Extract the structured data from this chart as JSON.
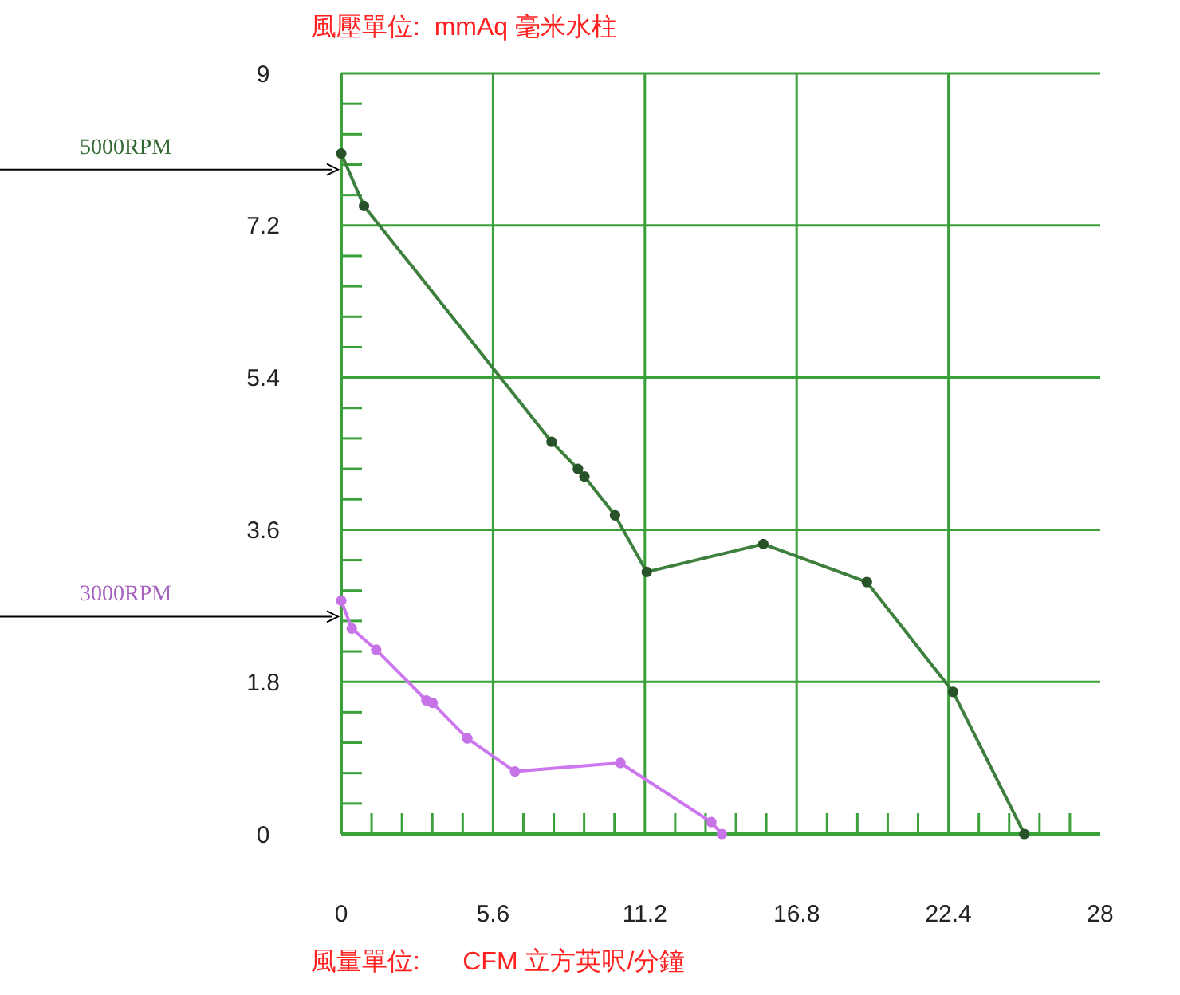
{
  "chart_data": {
    "type": "line",
    "ylabel": "風壓單位:  mmAq 毫米水柱",
    "xlabel": "風量單位:      CFM 立方英呎/分鐘",
    "xlim": [
      0,
      28
    ],
    "ylim": [
      0,
      9
    ],
    "xticks": [
      0,
      {
        "value": 1.12,
        "label": null
      },
      {
        "value": 2.24,
        "label": null
      },
      {
        "value": 3.36,
        "label": null
      },
      {
        "value": 4.48,
        "label": null
      },
      5.6,
      {
        "value": 6.72,
        "label": null
      },
      {
        "value": 7.84,
        "label": null
      },
      {
        "value": 8.96,
        "label": null
      },
      {
        "value": 10.08,
        "label": null
      },
      11.2,
      {
        "value": 12.32,
        "label": null
      },
      {
        "value": 13.44,
        "label": null
      },
      {
        "value": 14.56,
        "label": null
      },
      {
        "value": 15.68,
        "label": null
      },
      16.8,
      {
        "value": 17.92,
        "label": null
      },
      {
        "value": 19.04,
        "label": null
      },
      {
        "value": 20.16,
        "label": null
      },
      {
        "value": 21.28,
        "label": null
      },
      22.4,
      {
        "value": 23.52,
        "label": null
      },
      {
        "value": 24.64,
        "label": null
      },
      {
        "value": 25.76,
        "label": null
      },
      {
        "value": 26.88,
        "label": null
      },
      28
    ],
    "yticks": [
      0,
      {
        "value": 0.36,
        "label": null
      },
      {
        "value": 0.72,
        "label": null
      },
      {
        "value": 1.08,
        "label": null
      },
      {
        "value": 1.44,
        "label": null
      },
      1.8,
      {
        "value": 2.16,
        "label": null
      },
      {
        "value": 2.52,
        "label": null
      },
      {
        "value": 2.88,
        "label": null
      },
      {
        "value": 3.24,
        "label": null
      },
      3.6,
      {
        "value": 3.96,
        "label": null
      },
      {
        "value": 4.32,
        "label": null
      },
      {
        "value": 4.68,
        "label": null
      },
      {
        "value": 5.04,
        "label": null
      },
      5.4,
      {
        "value": 5.76,
        "label": null
      },
      {
        "value": 6.12,
        "label": null
      },
      {
        "value": 6.48,
        "label": null
      },
      {
        "value": 6.84,
        "label": null
      },
      7.2,
      {
        "value": 7.56,
        "label": null
      },
      {
        "value": 7.92,
        "label": null
      },
      {
        "value": 8.28,
        "label": null
      },
      {
        "value": 8.64,
        "label": null
      },
      9
    ],
    "grid": true,
    "marker": "circle",
    "series": [
      {
        "name": "5000RPM",
        "color": "#3d7f3d",
        "x": [
          0,
          0.84,
          7.76,
          8.73,
          8.97,
          10.1,
          11.27,
          15.57,
          19.39,
          22.57,
          25.2
        ],
        "values": [
          8.05,
          7.43,
          4.64,
          4.32,
          4.23,
          3.77,
          3.1,
          3.43,
          2.98,
          1.68,
          0
        ]
      },
      {
        "name": "3000RPM",
        "color": "#cc77ee",
        "x": [
          0,
          0.39,
          1.29,
          3.14,
          3.37,
          4.65,
          6.41,
          10.3,
          13.65,
          14.04
        ],
        "values": [
          2.76,
          2.43,
          2.18,
          1.58,
          1.55,
          1.13,
          0.74,
          0.84,
          0.14,
          0
        ]
      }
    ]
  }
}
